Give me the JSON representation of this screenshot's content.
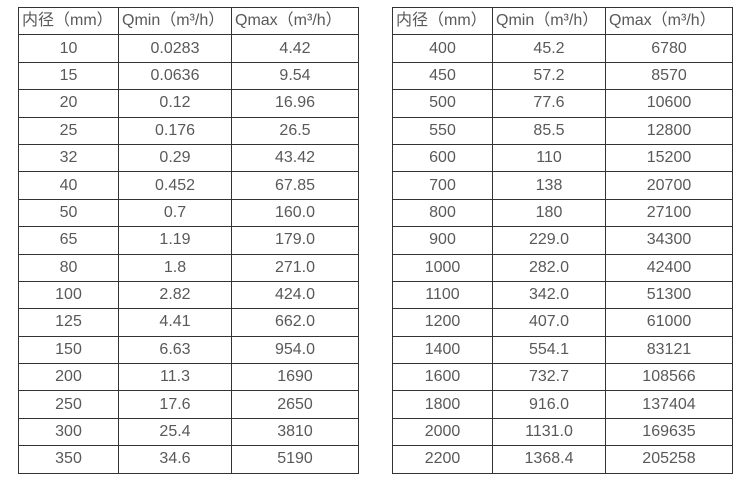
{
  "colors": {
    "background": "#ffffff",
    "border": "#333333",
    "text": "#595959"
  },
  "tables": [
    {
      "name": "flow-table-small-diameters",
      "headers": [
        "内径（mm）",
        "Qmin（m³/h）",
        "Qmax（m³/h）"
      ],
      "rows": [
        [
          "10",
          "0.0283",
          "4.42"
        ],
        [
          "15",
          "0.0636",
          "9.54"
        ],
        [
          "20",
          "0.12",
          "16.96"
        ],
        [
          "25",
          "0.176",
          "26.5"
        ],
        [
          "32",
          "0.29",
          "43.42"
        ],
        [
          "40",
          "0.452",
          "67.85"
        ],
        [
          "50",
          "0.7",
          "160.0"
        ],
        [
          "65",
          "1.19",
          "179.0"
        ],
        [
          "80",
          "1.8",
          "271.0"
        ],
        [
          "100",
          "2.82",
          "424.0"
        ],
        [
          "125",
          "4.41",
          "662.0"
        ],
        [
          "150",
          "6.63",
          "954.0"
        ],
        [
          "200",
          "11.3",
          "1690"
        ],
        [
          "250",
          "17.6",
          "2650"
        ],
        [
          "300",
          "25.4",
          "3810"
        ],
        [
          "350",
          "34.6",
          "5190"
        ]
      ]
    },
    {
      "name": "flow-table-large-diameters",
      "headers": [
        "内径（mm）",
        "Qmin（m³/h）",
        "Qmax（m³/h）"
      ],
      "rows": [
        [
          "400",
          "45.2",
          "6780"
        ],
        [
          "450",
          "57.2",
          "8570"
        ],
        [
          "500",
          "77.6",
          "10600"
        ],
        [
          "550",
          "85.5",
          "12800"
        ],
        [
          "600",
          "110",
          "15200"
        ],
        [
          "700",
          "138",
          "20700"
        ],
        [
          "800",
          "180",
          "27100"
        ],
        [
          "900",
          "229.0",
          "34300"
        ],
        [
          "1000",
          "282.0",
          "42400"
        ],
        [
          "1100",
          "342.0",
          "51300"
        ],
        [
          "1200",
          "407.0",
          "61000"
        ],
        [
          "1400",
          "554.1",
          "83121"
        ],
        [
          "1600",
          "732.7",
          "108566"
        ],
        [
          "1800",
          "916.0",
          "137404"
        ],
        [
          "2000",
          "1131.0",
          "169635"
        ],
        [
          "2200",
          "1368.4",
          "205258"
        ]
      ]
    }
  ]
}
